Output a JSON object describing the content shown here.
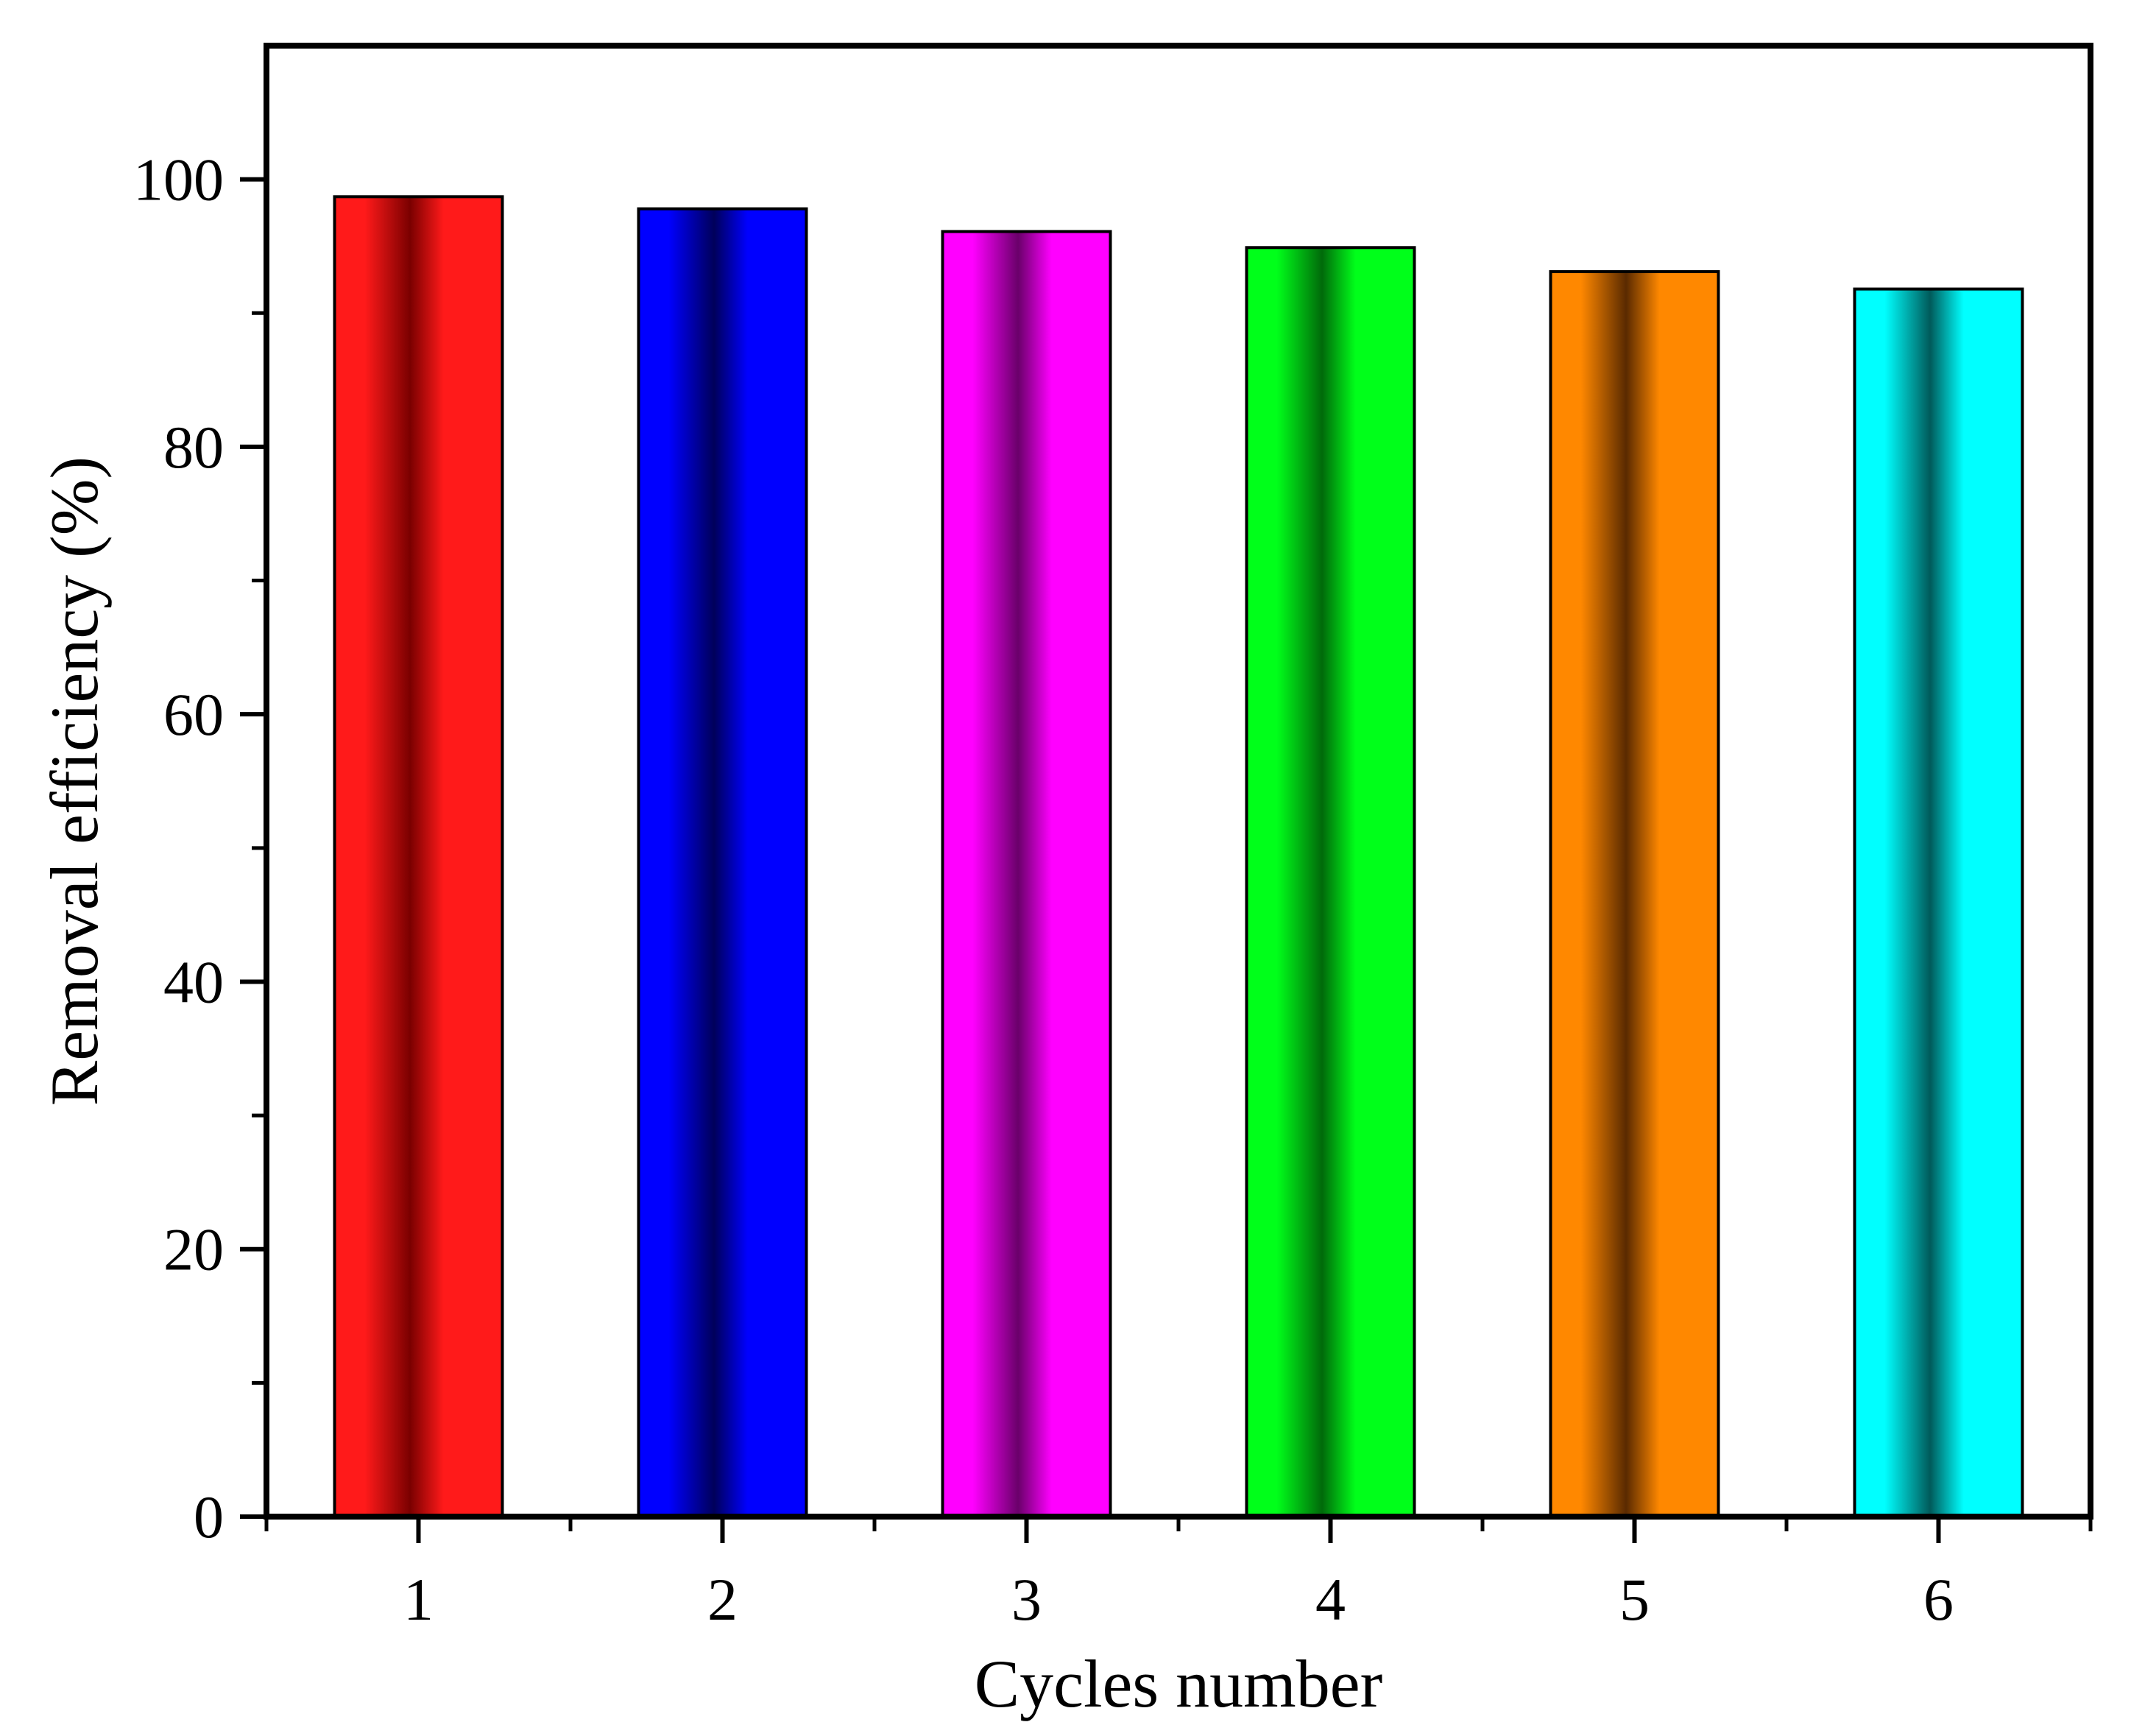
{
  "chart_data": {
    "type": "bar",
    "title": "",
    "xlabel": "Cycles number",
    "ylabel": "Removal efficiency (%)",
    "categories": [
      "1",
      "2",
      "3",
      "4",
      "5",
      "6"
    ],
    "values": [
      98.7,
      97.8,
      96.1,
      94.9,
      93.1,
      91.8
    ],
    "ylim": [
      0,
      110
    ],
    "yticks": [
      "0",
      "20",
      "40",
      "60",
      "80",
      "100"
    ],
    "ytick_values": [
      0,
      20,
      40,
      60,
      80,
      100
    ],
    "grid": false,
    "bar_colors": [
      {
        "base": "#ff1a1a",
        "dark": "#7a0000"
      },
      {
        "base": "#0000ff",
        "dark": "#00005a"
      },
      {
        "base": "#ff00ff",
        "dark": "#6a006a"
      },
      {
        "base": "#00ff1a",
        "dark": "#006a0a"
      },
      {
        "base": "#ff8800",
        "dark": "#5a2a00"
      },
      {
        "base": "#00ffff",
        "dark": "#005a5a"
      }
    ]
  }
}
